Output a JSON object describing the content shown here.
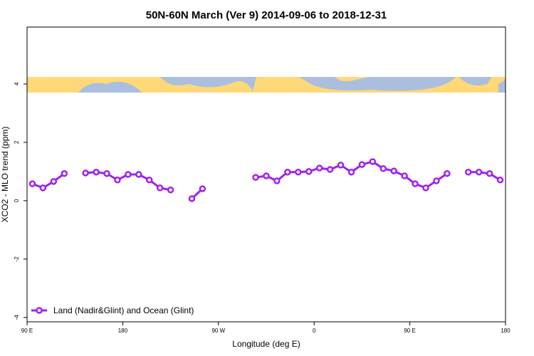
{
  "chart_data": {
    "type": "line",
    "title": "50N-60N March (Ver 9)   2014-09-06 to 2018-12-31",
    "x_label": "Longitude (deg E)",
    "y_label": "XCO2 - MLO trend (ppm)",
    "x": [
      95,
      105,
      115,
      125,
      135,
      145,
      155,
      165,
      175,
      185,
      195,
      205,
      215,
      225,
      235,
      245,
      255,
      265,
      275,
      285,
      295,
      305,
      315,
      325,
      335,
      345,
      355,
      365,
      375,
      385,
      395,
      405,
      415,
      425,
      435,
      445,
      455,
      465,
      475,
      485,
      495,
      505,
      515,
      525,
      535
    ],
    "series": [
      {
        "name": "Land (Nadir&Glint) and Ocean (Glint)",
        "color": "#a020f0",
        "values": [
          0.58,
          0.44,
          0.66,
          0.93,
          null,
          0.95,
          0.98,
          0.93,
          0.71,
          0.9,
          0.9,
          0.71,
          0.44,
          0.37,
          null,
          0.07,
          0.41,
          null,
          null,
          null,
          null,
          0.8,
          0.85,
          0.68,
          0.98,
          0.98,
          1.0,
          1.12,
          1.07,
          1.22,
          0.98,
          1.24,
          1.34,
          1.1,
          1.02,
          0.85,
          0.58,
          0.44,
          0.68,
          0.93,
          null,
          0.98,
          0.98,
          0.93,
          0.71
        ]
      }
    ],
    "xlim": [
      90,
      540
    ],
    "xticks": [
      {
        "value": 90,
        "label": "90 E"
      },
      180,
      {
        "value": 270,
        "label": "90 W"
      },
      {
        "value": 360,
        "label": "0"
      },
      {
        "value": 450,
        "label": "90 E"
      },
      {
        "value": 540,
        "label": "180"
      }
    ],
    "ylim": [
      -4.15,
      5.95
    ],
    "yticks": [
      -4,
      -2,
      0,
      2,
      4
    ],
    "legend": "bottom-left",
    "grid": false
  }
}
